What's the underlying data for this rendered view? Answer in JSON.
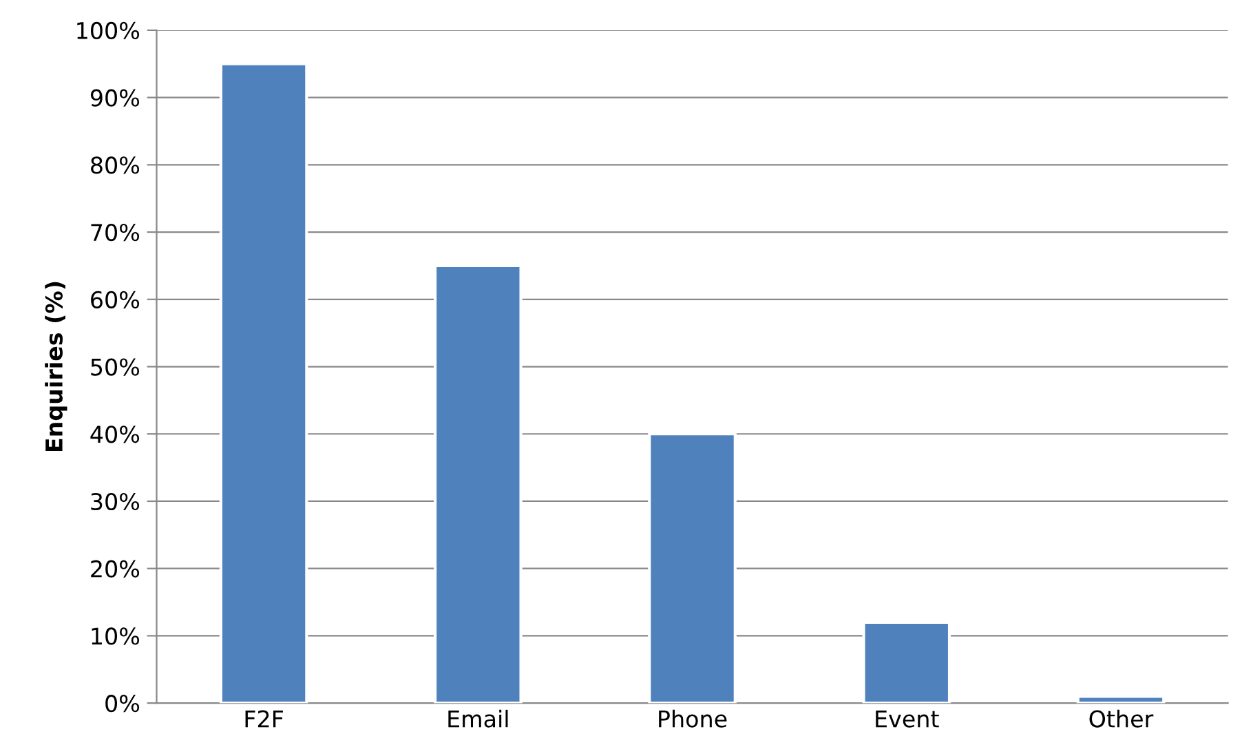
{
  "chart_data": {
    "type": "bar",
    "ylabel": "Enquiries (%)",
    "categories": [
      "F2F",
      "Email",
      "Phone",
      "Event",
      "Other"
    ],
    "values": [
      95,
      65,
      40,
      12,
      1
    ],
    "color": "#4f81bd",
    "ylim": [
      0,
      100
    ],
    "yticks": [
      {
        "value": 0,
        "label": "0%"
      },
      {
        "value": 10,
        "label": "10%"
      },
      {
        "value": 20,
        "label": "20%"
      },
      {
        "value": 30,
        "label": "30%"
      },
      {
        "value": 40,
        "label": "40%"
      },
      {
        "value": 50,
        "label": "50%"
      },
      {
        "value": 60,
        "label": "60%"
      },
      {
        "value": 70,
        "label": "70%"
      },
      {
        "value": 80,
        "label": "80%"
      },
      {
        "value": 90,
        "label": "90%"
      },
      {
        "value": 100,
        "label": "100%"
      }
    ],
    "grid": "y"
  }
}
